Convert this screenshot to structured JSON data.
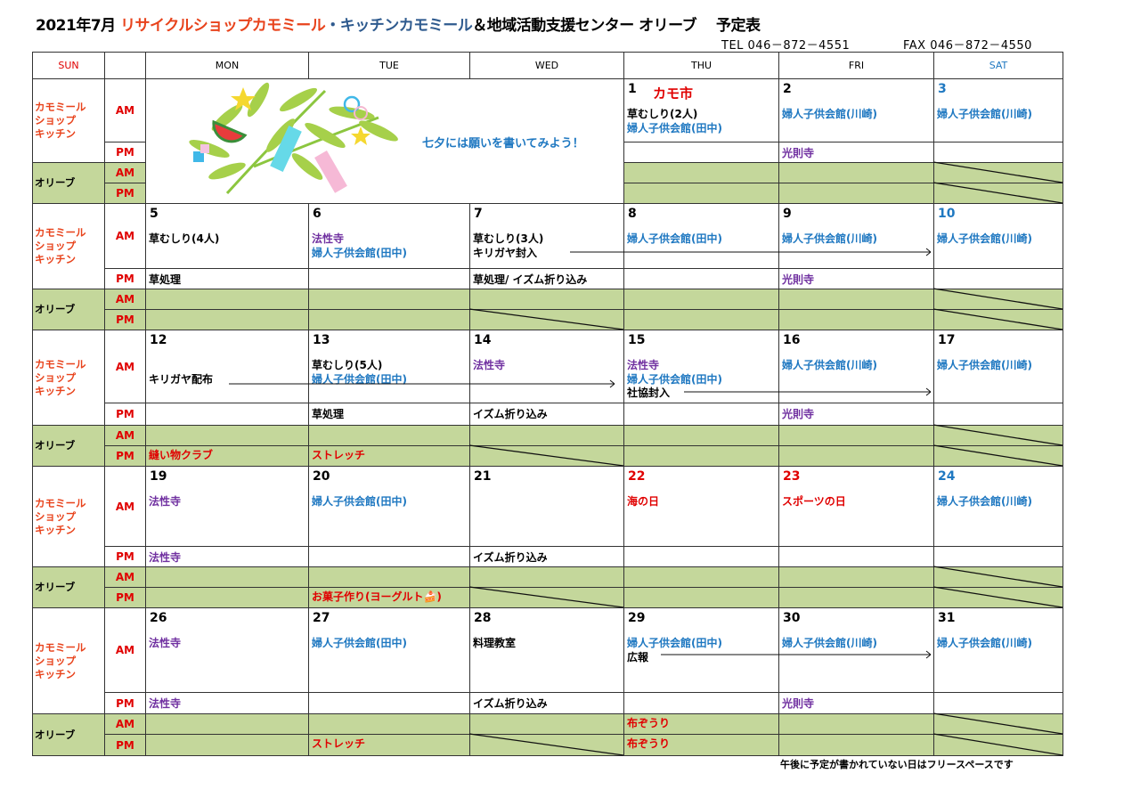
{
  "title": {
    "month": "2021年7月 ",
    "shop": "リサイクルショップカモミール",
    "kitchen": "・キッチンカモミール",
    "rest": "＆地域活動支援センター オリーブ　 予定表"
  },
  "contact": {
    "tel": "TEL 046－872－4551",
    "fax": "FAX 046－872－4550"
  },
  "headers": [
    "SUN",
    "",
    "MON",
    "TUE",
    "WED",
    "THU",
    "FRI",
    "SAT"
  ],
  "row_labels": {
    "kamomile": [
      "カモミール",
      "ショップ",
      "キッチン"
    ],
    "olive": "オリーブ",
    "am": "AM",
    "pm": "PM"
  },
  "tanabata": {
    "message": "七夕には願いを書いてみよう！"
  },
  "colors": {
    "k": "#000000",
    "b": "#1f78c1",
    "p": "#7030a0",
    "r": "#e00000",
    "shop": "#e8431c",
    "kitchen": "#2e5a8e",
    "sun": "#e00000",
    "sat": "#1f78c1",
    "olive_bg": "#c4d79b"
  },
  "weeks": [
    {
      "days": [
        null,
        null,
        null,
        {
          "num": "1",
          "nc": "k",
          "extra": "カモ市",
          "am": [
            {
              "t": "草むしり(2人)",
              "c": "k"
            },
            {
              "t": "婦人子供会館(田中)",
              "c": "b"
            }
          ],
          "pm": [],
          "oam": [],
          "opm": []
        },
        {
          "num": "2",
          "nc": "k",
          "am": [
            {
              "t": "婦人子供会館(川崎)",
              "c": "b"
            }
          ],
          "pm": [
            {
              "t": "光則寺",
              "c": "p"
            }
          ],
          "oam": [],
          "opm": []
        },
        {
          "num": "3",
          "nc": "sat",
          "am": [
            {
              "t": "婦人子供会館(川崎)",
              "c": "b"
            }
          ],
          "pm": [],
          "oam": [],
          "opm": [],
          "oam_x": true,
          "opm_x": true
        }
      ]
    },
    {
      "days": [
        {
          "num": "5",
          "nc": "k",
          "am": [
            {
              "t": "草むしり(4人)",
              "c": "k"
            }
          ],
          "pm": [
            {
              "t": "草処理",
              "c": "k"
            }
          ],
          "oam": [],
          "opm": []
        },
        {
          "num": "6",
          "nc": "k",
          "am": [
            {
              "t": "法性寺",
              "c": "p"
            },
            {
              "t": "婦人子供会館(田中)",
              "c": "b"
            }
          ],
          "pm": [],
          "oam": [],
          "opm": []
        },
        {
          "num": "7",
          "nc": "k",
          "am": [
            {
              "t": "草むしり(3人)",
              "c": "k"
            },
            {
              "t": "キリガヤ封入",
              "c": "k"
            }
          ],
          "pm": [
            {
              "t": "草処理/ イズム折り込み",
              "c": "k"
            }
          ],
          "oam": [],
          "opm": [],
          "opm_x": true
        },
        {
          "num": "8",
          "nc": "k",
          "am": [
            {
              "t": "婦人子供会館(田中)",
              "c": "b"
            }
          ],
          "pm": [],
          "oam": [],
          "opm": []
        },
        {
          "num": "9",
          "nc": "k",
          "am": [
            {
              "t": "婦人子供会館(川崎)",
              "c": "b"
            }
          ],
          "pm": [
            {
              "t": "光則寺",
              "c": "p"
            }
          ],
          "oam": [],
          "opm": []
        },
        {
          "num": "10",
          "nc": "sat",
          "am": [
            {
              "t": "婦人子供会館(川崎)",
              "c": "b"
            }
          ],
          "pm": [],
          "oam": [],
          "opm": [],
          "oam_x": true,
          "opm_x": true
        }
      ]
    },
    {
      "days": [
        {
          "num": "12",
          "nc": "k",
          "am": [
            {
              "t": "",
              "c": "k"
            },
            {
              "t": "キリガヤ配布",
              "c": "k"
            }
          ],
          "pm": [],
          "oam": [],
          "opm": [
            {
              "t": "縫い物クラブ",
              "c": "r"
            }
          ]
        },
        {
          "num": "13",
          "nc": "k",
          "am": [
            {
              "t": "草むしり(5人)",
              "c": "k"
            },
            {
              "t": "婦人子供会館(田中)",
              "c": "b"
            }
          ],
          "pm": [
            {
              "t": "草処理",
              "c": "k"
            }
          ],
          "oam": [],
          "opm": [
            {
              "t": "ストレッチ",
              "c": "r"
            }
          ]
        },
        {
          "num": "14",
          "nc": "k",
          "am": [
            {
              "t": "法性寺",
              "c": "p"
            }
          ],
          "pm": [
            {
              "t": "イズム折り込み",
              "c": "k"
            }
          ],
          "oam": [],
          "opm": [],
          "opm_x": true
        },
        {
          "num": "15",
          "nc": "k",
          "am": [
            {
              "t": "法性寺",
              "c": "p"
            },
            {
              "t": "婦人子供会館(田中)",
              "c": "b"
            },
            {
              "t": "社協封入",
              "c": "k"
            }
          ],
          "pm": [],
          "oam": [],
          "opm": []
        },
        {
          "num": "16",
          "nc": "k",
          "am": [
            {
              "t": "婦人子供会館(川崎)",
              "c": "b"
            }
          ],
          "pm": [
            {
              "t": "光則寺",
              "c": "p"
            }
          ],
          "oam": [],
          "opm": []
        },
        {
          "num": "17",
          "nc": "k",
          "am": [
            {
              "t": "婦人子供会館(川崎)",
              "c": "b"
            }
          ],
          "pm": [],
          "oam": [],
          "opm": [],
          "oam_x": true,
          "opm_x": true
        }
      ]
    },
    {
      "days": [
        {
          "num": "19",
          "nc": "k",
          "am": [
            {
              "t": "法性寺",
              "c": "p"
            }
          ],
          "pm": [
            {
              "t": "法性寺",
              "c": "p"
            }
          ],
          "oam": [],
          "opm": []
        },
        {
          "num": "20",
          "nc": "k",
          "am": [
            {
              "t": "婦人子供会館(田中)",
              "c": "b"
            }
          ],
          "pm": [],
          "oam": [],
          "opm": [
            {
              "t": "お菓子作り(ヨーグルト🍰)",
              "c": "r"
            }
          ]
        },
        {
          "num": "21",
          "nc": "k",
          "am": [],
          "pm": [
            {
              "t": "イズム折り込み",
              "c": "k"
            }
          ],
          "oam": [],
          "opm": [],
          "opm_x": true
        },
        {
          "num": "22",
          "nc": "sun",
          "am": [
            {
              "t": "海の日",
              "c": "r"
            }
          ],
          "pm": [],
          "oam": [],
          "opm": []
        },
        {
          "num": "23",
          "nc": "sun",
          "am": [
            {
              "t": "スポーツの日",
              "c": "r"
            }
          ],
          "pm": [],
          "oam": [],
          "opm": []
        },
        {
          "num": "24",
          "nc": "sat",
          "am": [
            {
              "t": "婦人子供会館(川崎)",
              "c": "b"
            }
          ],
          "pm": [],
          "oam": [],
          "opm": [],
          "oam_x": true,
          "opm_x": true
        }
      ]
    },
    {
      "days": [
        {
          "num": "26",
          "nc": "k",
          "am": [
            {
              "t": "法性寺",
              "c": "p"
            }
          ],
          "pm": [
            {
              "t": "法性寺",
              "c": "p"
            }
          ],
          "oam": [],
          "opm": []
        },
        {
          "num": "27",
          "nc": "k",
          "am": [
            {
              "t": "婦人子供会館(田中)",
              "c": "b"
            }
          ],
          "pm": [],
          "oam": [],
          "opm": [
            {
              "t": "ストレッチ",
              "c": "r"
            }
          ]
        },
        {
          "num": "28",
          "nc": "k",
          "am": [
            {
              "t": "料理教室",
              "c": "k"
            }
          ],
          "pm": [
            {
              "t": "イズム折り込み",
              "c": "k"
            }
          ],
          "oam": [],
          "opm": [],
          "opm_x": true
        },
        {
          "num": "29",
          "nc": "k",
          "am": [
            {
              "t": "婦人子供会館(田中)",
              "c": "b"
            },
            {
              "t": "広報",
              "c": "k"
            }
          ],
          "pm": [],
          "oam": [
            {
              "t": "布ぞうり",
              "c": "r"
            }
          ],
          "opm": [
            {
              "t": "布ぞうり",
              "c": "r"
            }
          ]
        },
        {
          "num": "30",
          "nc": "k",
          "am": [
            {
              "t": "婦人子供会館(川崎)",
              "c": "b"
            }
          ],
          "pm": [
            {
              "t": "光則寺",
              "c": "p"
            }
          ],
          "oam": [],
          "opm": []
        },
        {
          "num": "31",
          "nc": "k",
          "am": [
            {
              "t": "婦人子供会館(川崎)",
              "c": "b"
            }
          ],
          "pm": [],
          "oam": [],
          "opm": [],
          "oam_x": true,
          "opm_x": true
        }
      ]
    }
  ],
  "footer_note": "午後に予定が書かれていない日はフリースペースです"
}
